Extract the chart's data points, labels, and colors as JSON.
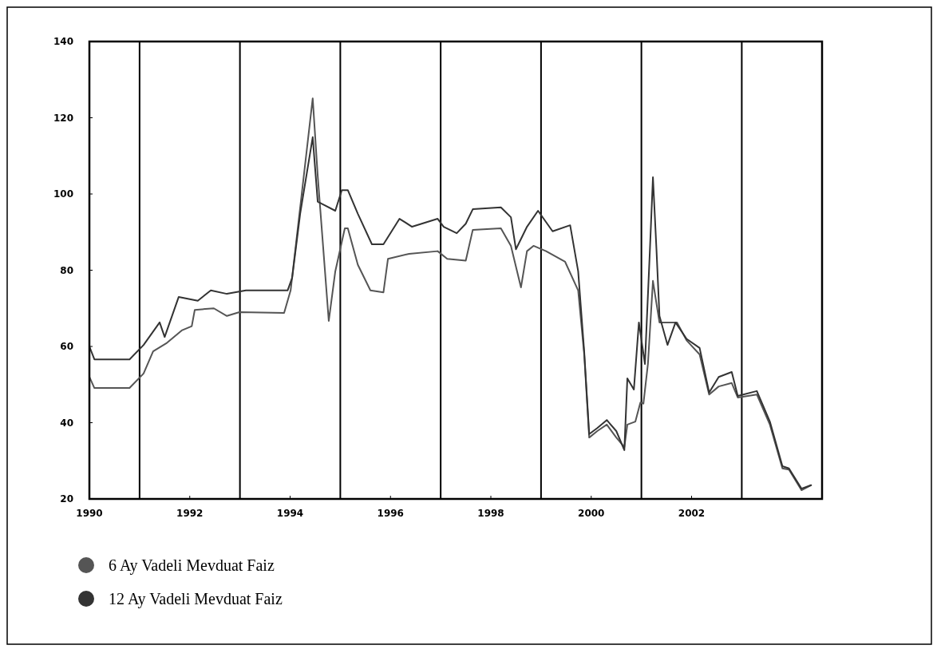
{
  "chart_data": {
    "type": "line",
    "xlim": [
      1990,
      2004.6
    ],
    "xticks": [
      1990,
      1992,
      1994,
      1996,
      1998,
      2000,
      2002
    ],
    "ylim": [
      20,
      140
    ],
    "yticks": [
      20,
      40,
      60,
      80,
      100,
      120,
      140
    ],
    "ref_lines": [
      {
        "axis": "x",
        "value": 1991,
        "color": "#000000"
      },
      {
        "axis": "x",
        "value": 1993,
        "color": "#000000"
      },
      {
        "axis": "x",
        "value": 1995,
        "color": "#000000"
      },
      {
        "axis": "x",
        "value": 1997,
        "color": "#000000"
      },
      {
        "axis": "x",
        "value": 1999,
        "color": "#000000"
      },
      {
        "axis": "x",
        "value": 2001,
        "color": "#000000"
      },
      {
        "axis": "x",
        "value": 2003,
        "color": "#000000"
      }
    ],
    "legend": "bottom left",
    "grid": false,
    "marker": "none",
    "line_style": "solid",
    "series": [
      {
        "name": "6 Ay Vadeli Mevduat Faiz",
        "color": "#555555",
        "x": [
          1990,
          1990.1,
          1990.8,
          1991.08,
          1991.27,
          1991.53,
          1991.84,
          1992.04,
          1992.1,
          1992.48,
          1992.74,
          1992.99,
          1993.88,
          1994.01,
          1994.2,
          1994.45,
          1994.55,
          1994.77,
          1994.9,
          1995.09,
          1995.15,
          1995.35,
          1995.6,
          1995.86,
          1995.95,
          1996.37,
          1996.94,
          1997.13,
          1997.5,
          1997.64,
          1998.2,
          1998.4,
          1998.6,
          1998.72,
          1998.85,
          1999.1,
          1999.48,
          1999.74,
          1999.86,
          1999.96,
          2000.12,
          2000.31,
          2000.5,
          2000.66,
          2000.72,
          2000.88,
          2000.98,
          2001.04,
          2001.13,
          2001.23,
          2001.3,
          2001.36,
          2001.52,
          2001.71,
          2001.9,
          2002.16,
          2002.35,
          2002.54,
          2002.8,
          2002.92,
          2003.3,
          2003.56,
          2003.81,
          2003.94,
          2004.19,
          2004.38
        ],
        "values": [
          52,
          49.1,
          49.1,
          52.9,
          58.7,
          60.8,
          64.2,
          65.3,
          69.6,
          70,
          68,
          69,
          68.8,
          74.7,
          96.4,
          125.1,
          104.8,
          66.7,
          79.7,
          91,
          91,
          81.4,
          74.7,
          74.2,
          83,
          84.3,
          85,
          83,
          82.5,
          90.6,
          91,
          86.4,
          75.5,
          85,
          86.4,
          85,
          82.2,
          74.7,
          58,
          36.1,
          37.8,
          39.5,
          36.1,
          33.6,
          39.5,
          40.3,
          45.3,
          45,
          55.4,
          77.2,
          71.3,
          66.3,
          66.3,
          66.3,
          61.6,
          57.9,
          47.4,
          49.5,
          50.4,
          46.6,
          47.4,
          39.5,
          28,
          27.7,
          22.3,
          23.6
        ]
      },
      {
        "name": "12 Ay Vadeli Mevduat Faiz",
        "color": "#333333",
        "x": [
          1990,
          1990.1,
          1990.8,
          1991.08,
          1991.4,
          1991.5,
          1991.78,
          1992.16,
          1992.42,
          1992.74,
          1993.12,
          1993.95,
          1994.04,
          1994.2,
          1994.45,
          1994.55,
          1994.65,
          1994.9,
          1995.03,
          1995.15,
          1995.35,
          1995.63,
          1995.86,
          1996.18,
          1996.43,
          1996.94,
          1997.06,
          1997.32,
          1997.5,
          1997.64,
          1998.2,
          1998.4,
          1998.5,
          1998.72,
          1998.94,
          1999.23,
          1999.58,
          1999.74,
          1999.86,
          1999.96,
          2000.12,
          2000.31,
          2000.5,
          2000.66,
          2000.72,
          2000.85,
          2000.95,
          2001.07,
          2001.17,
          2001.23,
          2001.3,
          2001.36,
          2001.52,
          2001.68,
          2001.9,
          2002.16,
          2002.35,
          2002.54,
          2002.8,
          2002.92,
          2003.3,
          2003.56,
          2003.81,
          2003.94,
          2004.19,
          2004.38
        ],
        "values": [
          60,
          56.6,
          56.6,
          60.4,
          66.3,
          62.5,
          73,
          72,
          74.7,
          73.8,
          74.7,
          74.7,
          78,
          94.8,
          114.9,
          98,
          97.3,
          95.6,
          101,
          101,
          94.8,
          86.8,
          86.8,
          93.5,
          91.4,
          93.5,
          91.4,
          89.7,
          92.2,
          96,
          96.5,
          93.9,
          85.5,
          91.4,
          95.6,
          90.2,
          91.8,
          79.7,
          58.7,
          37,
          38.6,
          40.7,
          37.8,
          32.8,
          51.6,
          48.7,
          66.3,
          55.4,
          85.5,
          104.4,
          85.5,
          68,
          60.4,
          66.3,
          62,
          59.6,
          47.9,
          52,
          53.3,
          47,
          48.3,
          40.3,
          28.6,
          28,
          22.7,
          23.6
        ]
      }
    ]
  }
}
